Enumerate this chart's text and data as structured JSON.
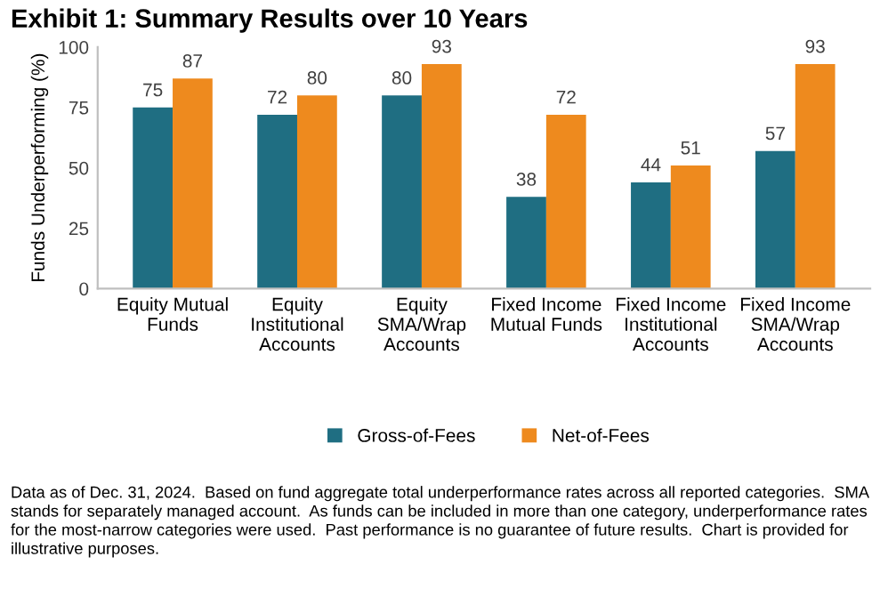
{
  "chart_data": {
    "type": "bar",
    "title": "Exhibit 1: Summary Results over 10 Years",
    "ylabel": "Funds Underperforming (%)",
    "categories": [
      "Equity Mutual\nFunds",
      "Equity\nInstitutional\nAccounts",
      "Equity\nSMA/Wrap\nAccounts",
      "Fixed Income\nMutual Funds",
      "Fixed Income\nInstitutional\nAccounts",
      "Fixed Income\nSMA/Wrap\nAccounts"
    ],
    "series": [
      {
        "name": "Gross-of-Fees",
        "color": "#1f6e82",
        "values": [
          75,
          72,
          80,
          38,
          44,
          57
        ]
      },
      {
        "name": "Net-of-Fees",
        "color": "#ee8a1e",
        "values": [
          87,
          80,
          93,
          72,
          51,
          93
        ]
      }
    ],
    "ylim": [
      0,
      100
    ],
    "yticks": [
      0,
      25,
      50,
      75,
      100
    ],
    "grid": false,
    "legend": "bottom",
    "data_labels": true,
    "annotations": [
      "Data as of Dec. 31, 2024.  Based on fund aggregate total underperformance rates across all reported categories.  SMA stands for separately managed account.  As funds can be included in more than one category, underperformance rates for the most-narrow categories were used.  Past performance is no guarantee of future results.  Chart is provided for illustrative purposes."
    ]
  }
}
